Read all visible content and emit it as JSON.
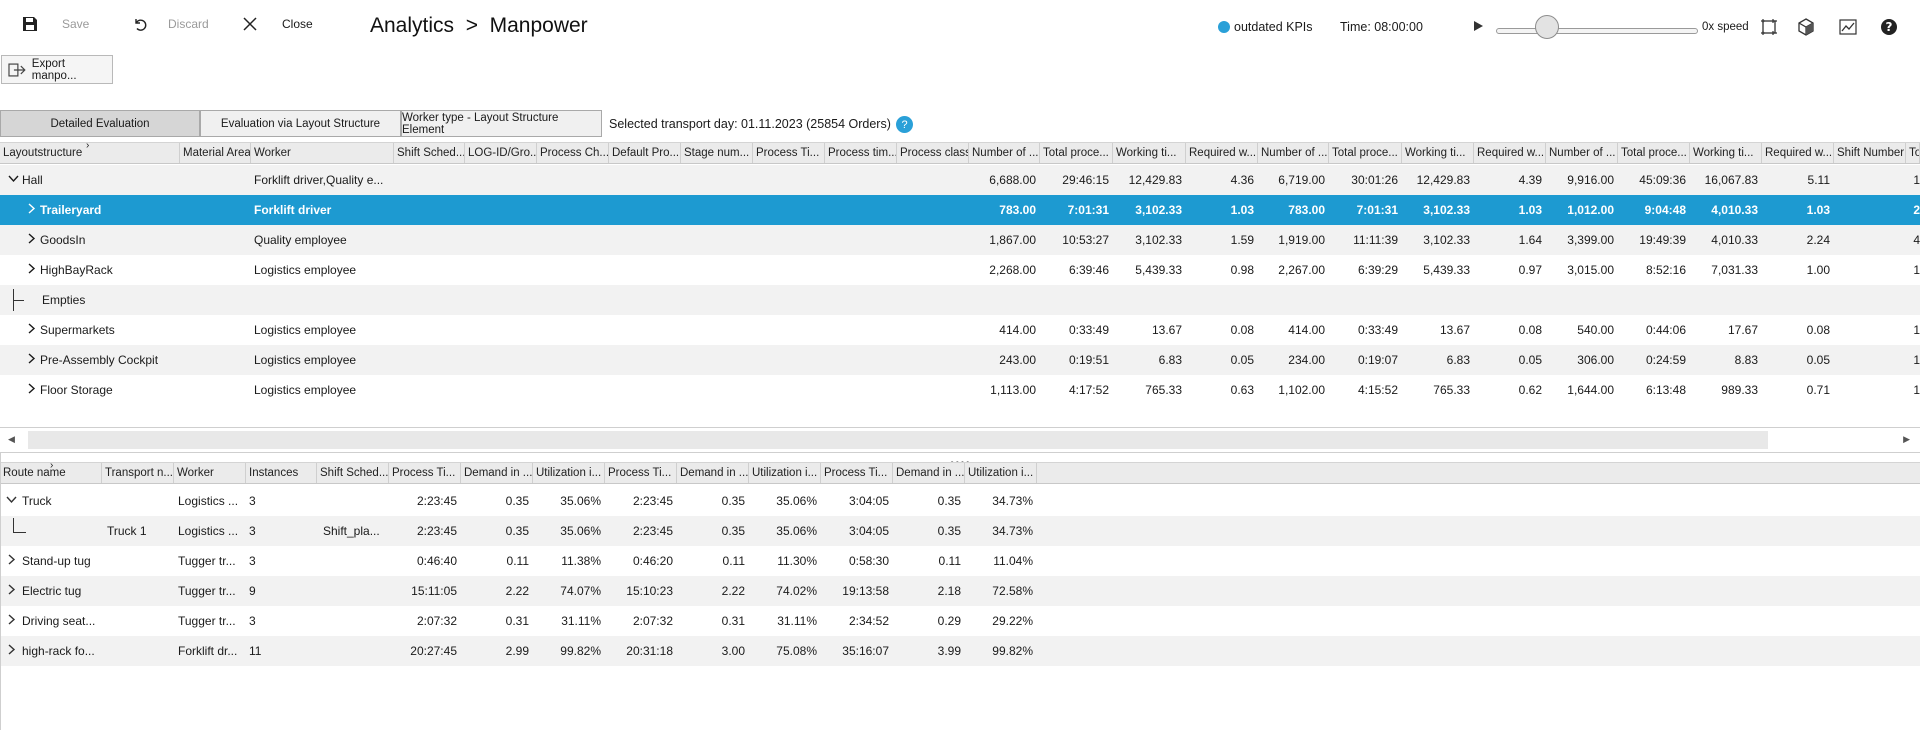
{
  "toolbar": {
    "save_label": "Save",
    "discard_label": "Discard",
    "close_label": "Close",
    "breadcrumb": "Analytics  >  Manpower",
    "kpi_status": "outdated KPIs",
    "time": "Time: 08:00:00",
    "speed": "0x speed",
    "export_label": "Export manpo..."
  },
  "tabs": [
    {
      "label": "Detailed Evaluation",
      "active": true
    },
    {
      "label": "Evaluation via Layout Structure",
      "active": false
    },
    {
      "label": "Worker type - Layout Structure Element",
      "active": false
    }
  ],
  "transport_day": "Selected transport day: 01.11.2023 (25854 Orders)",
  "info_icon": "?",
  "top_table": {
    "columns": [
      "Layoutstructure",
      "Material Area",
      "Worker",
      "Shift Sched...",
      "LOG-ID/Gro...",
      "Process Ch...",
      "Default Pro...",
      "Stage num...",
      "Process Ti...",
      "Process tim...",
      "Process class",
      "Number of ...",
      "Total proce...",
      "Working ti...",
      "Required w...",
      "Number of ...",
      "Total proce...",
      "Working ti...",
      "Required w...",
      "Number of ...",
      "Total proce...",
      "Working ti...",
      "Required w...",
      "Shift Number",
      "To"
    ],
    "rows": [
      {
        "name": "Hall",
        "expand": "open",
        "worker": "Forklift driver,Quality e...",
        "vals": [
          "6,688.00",
          "29:46:15",
          "12,429.83",
          "4.36",
          "6,719.00",
          "30:01:26",
          "12,429.83",
          "4.39",
          "9,916.00",
          "45:09:36",
          "16,067.83",
          "5.11"
        ],
        "tail": "1"
      },
      {
        "name": "Traileryard",
        "expand": "closed",
        "worker": "Forklift driver",
        "vals": [
          "783.00",
          "7:01:31",
          "3,102.33",
          "1.03",
          "783.00",
          "7:01:31",
          "3,102.33",
          "1.03",
          "1,012.00",
          "9:04:48",
          "4,010.33",
          "1.03"
        ],
        "tail": "2",
        "selected": true
      },
      {
        "name": "GoodsIn",
        "expand": "closed",
        "worker": "Quality employee",
        "vals": [
          "1,867.00",
          "10:53:27",
          "3,102.33",
          "1.59",
          "1,919.00",
          "11:11:39",
          "3,102.33",
          "1.64",
          "3,399.00",
          "19:49:39",
          "4,010.33",
          "2.24"
        ],
        "tail": "4"
      },
      {
        "name": "HighBayRack",
        "expand": "closed",
        "worker": "Logistics employee",
        "vals": [
          "2,268.00",
          "6:39:46",
          "5,439.33",
          "0.98",
          "2,267.00",
          "6:39:29",
          "5,439.33",
          "0.97",
          "3,015.00",
          "8:52:16",
          "7,031.33",
          "1.00"
        ],
        "tail": "1"
      },
      {
        "name": "Empties",
        "expand": "leaf",
        "worker": "",
        "vals": [
          "",
          "",
          "",
          "",
          "",
          "",
          "",
          "",
          "",
          "",
          "",
          ""
        ],
        "tail": ""
      },
      {
        "name": "Supermarkets",
        "expand": "closed",
        "worker": "Logistics employee",
        "vals": [
          "414.00",
          "0:33:49",
          "13.67",
          "0.08",
          "414.00",
          "0:33:49",
          "13.67",
          "0.08",
          "540.00",
          "0:44:06",
          "17.67",
          "0.08"
        ],
        "tail": "1"
      },
      {
        "name": "Pre-Assembly Cockpit",
        "expand": "closed",
        "worker": "Logistics employee",
        "vals": [
          "243.00",
          "0:19:51",
          "6.83",
          "0.05",
          "234.00",
          "0:19:07",
          "6.83",
          "0.05",
          "306.00",
          "0:24:59",
          "8.83",
          "0.05"
        ],
        "tail": "1"
      },
      {
        "name": "Floor Storage",
        "expand": "closed",
        "worker": "Logistics employee",
        "vals": [
          "1,113.00",
          "4:17:52",
          "765.33",
          "0.63",
          "1,102.00",
          "4:15:52",
          "765.33",
          "0.62",
          "1,644.00",
          "6:13:48",
          "989.33",
          "0.71"
        ],
        "tail": "1"
      }
    ]
  },
  "bottom_table": {
    "columns": [
      "Route name",
      "Transport n...",
      "Worker",
      "Instances",
      "Shift Sched...",
      "Process Ti...",
      "Demand in ...",
      "Utilization i...",
      "Process Ti...",
      "Demand in ...",
      "Utilization i...",
      "Process Ti...",
      "Demand in ...",
      "Utilization i..."
    ],
    "rows": [
      {
        "name": "Truck",
        "expand": "open",
        "transport": "",
        "worker": "Logistics ...",
        "instances": "3",
        "shift": "",
        "vals": [
          "2:23:45",
          "0.35",
          "35.06%",
          "2:23:45",
          "0.35",
          "35.06%",
          "3:04:05",
          "0.35",
          "34.73%"
        ]
      },
      {
        "name": "",
        "expand": "leaf",
        "transport": "Truck 1",
        "worker": "Logistics ...",
        "instances": "3",
        "shift": "Shift_pla...",
        "vals": [
          "2:23:45",
          "0.35",
          "35.06%",
          "2:23:45",
          "0.35",
          "35.06%",
          "3:04:05",
          "0.35",
          "34.73%"
        ]
      },
      {
        "name": "Stand-up tug",
        "expand": "closed",
        "transport": "",
        "worker": "Tugger tr...",
        "instances": "3",
        "shift": "",
        "vals": [
          "0:46:40",
          "0.11",
          "11.38%",
          "0:46:20",
          "0.11",
          "11.30%",
          "0:58:30",
          "0.11",
          "11.04%"
        ]
      },
      {
        "name": "Electric tug",
        "expand": "closed",
        "transport": "",
        "worker": "Tugger tr...",
        "instances": "9",
        "shift": "",
        "vals": [
          "15:11:05",
          "2.22",
          "74.07%",
          "15:10:23",
          "2.22",
          "74.02%",
          "19:13:58",
          "2.18",
          "72.58%"
        ]
      },
      {
        "name": "Driving seat...",
        "expand": "closed",
        "transport": "",
        "worker": "Tugger tr...",
        "instances": "3",
        "shift": "",
        "vals": [
          "2:07:32",
          "0.31",
          "31.11%",
          "2:07:32",
          "0.31",
          "31.11%",
          "2:34:52",
          "0.29",
          "29.22%"
        ]
      },
      {
        "name": "high-rack fo...",
        "expand": "closed",
        "transport": "",
        "worker": "Forklift dr...",
        "instances": "11",
        "shift": "",
        "vals": [
          "20:27:45",
          "2.99",
          "99.82%",
          "20:31:18",
          "3.00",
          "75.08%",
          "35:16:07",
          "3.99",
          "99.82%"
        ]
      }
    ]
  }
}
